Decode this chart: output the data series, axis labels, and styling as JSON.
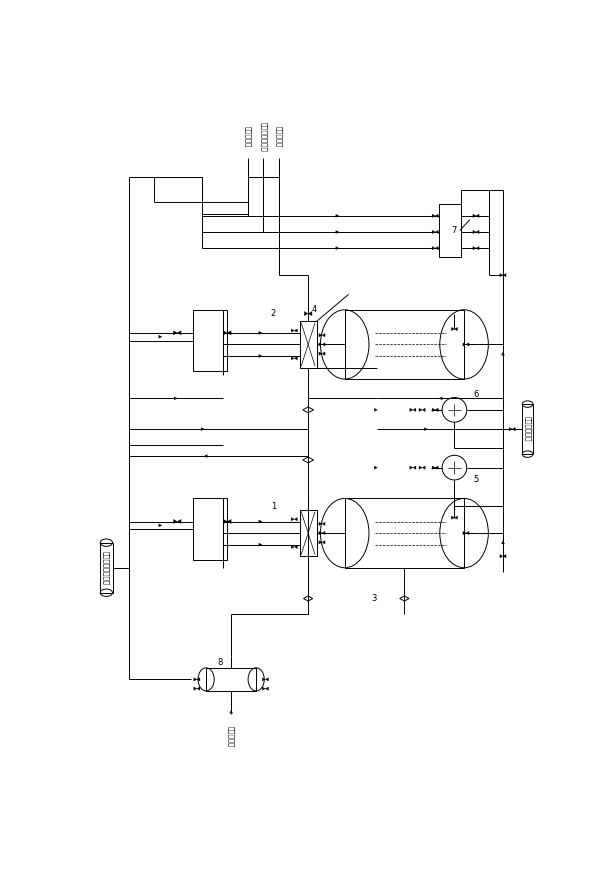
{
  "bg_color": "#ffffff",
  "line_color": "#000000",
  "labels": {
    "top_label1": "去尾气吸收",
    "top_label2": "空气来自压缩机",
    "top_label3": "去压滤系统",
    "left_label": "来自一级压滤液水",
    "bottom_label": "硫化氢气体",
    "right_label": "去污水处理池"
  },
  "numbers": [
    "1",
    "2",
    "3",
    "4",
    "5",
    "6",
    "7",
    "8"
  ]
}
